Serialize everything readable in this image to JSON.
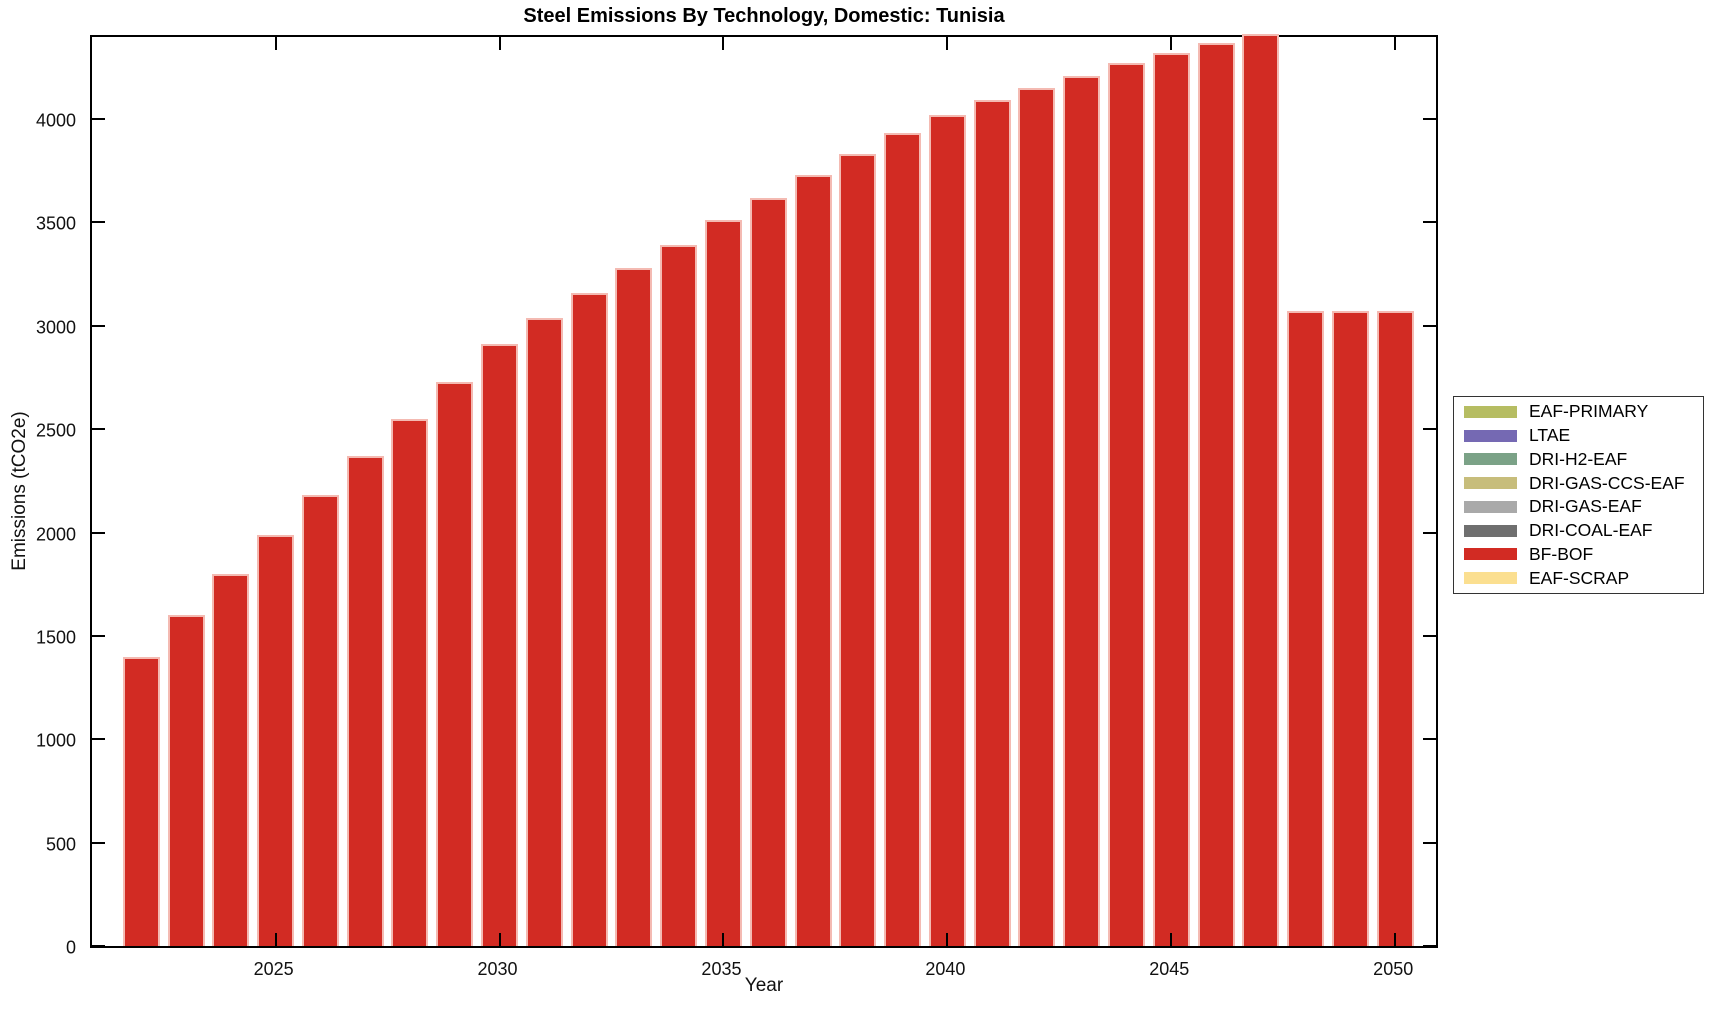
{
  "figure": {
    "title": "Steel Emissions By Technology, Domestic: Tunisia"
  },
  "chart_data": {
    "type": "bar",
    "title": "Steel Emissions By Technology, Domestic: Tunisia",
    "xlabel": "Year",
    "ylabel": "Emissions (tCO2e)",
    "grid": false,
    "legend_position": "right-outside",
    "xlim": [
      2020.9,
      2051.0
    ],
    "ylim": [
      0,
      4416
    ],
    "x_ticks": [
      2025,
      2030,
      2035,
      2040,
      2045,
      2050
    ],
    "y_ticks": [
      0,
      500,
      1000,
      1500,
      2000,
      2500,
      3000,
      3500,
      4000
    ],
    "categories": [
      2022,
      2023,
      2024,
      2025,
      2026,
      2027,
      2028,
      2029,
      2030,
      2031,
      2032,
      2033,
      2034,
      2035,
      2036,
      2037,
      2038,
      2039,
      2040,
      2041,
      2042,
      2043,
      2044,
      2045,
      2046,
      2047,
      2048,
      2049,
      2050
    ],
    "series": [
      {
        "name": "BF-BOF",
        "color": "#d22b23",
        "edge_color": "#f4bab2",
        "values": [
          1400,
          1600,
          1800,
          1990,
          2180,
          2370,
          2550,
          2730,
          2910,
          3040,
          3160,
          3280,
          3390,
          3510,
          3620,
          3730,
          3830,
          3930,
          4020,
          4090,
          4150,
          4210,
          4270,
          4320,
          4370,
          4410,
          3070,
          3070,
          3070
        ]
      }
    ],
    "legend": [
      {
        "label": "EAF-PRIMARY",
        "color": "#b6bd62"
      },
      {
        "label": "LTAE",
        "color": "#7569b3"
      },
      {
        "label": "DRI-H2-EAF",
        "color": "#7ba287"
      },
      {
        "label": "DRI-GAS-CCS-EAF",
        "color": "#c7bd7b"
      },
      {
        "label": "DRI-GAS-EAF",
        "color": "#a9a9a9"
      },
      {
        "label": "DRI-COAL-EAF",
        "color": "#6f6f6f"
      },
      {
        "label": "BF-BOF",
        "color": "#d22b23"
      },
      {
        "label": "EAF-SCRAP",
        "color": "#fbdf90"
      }
    ]
  }
}
